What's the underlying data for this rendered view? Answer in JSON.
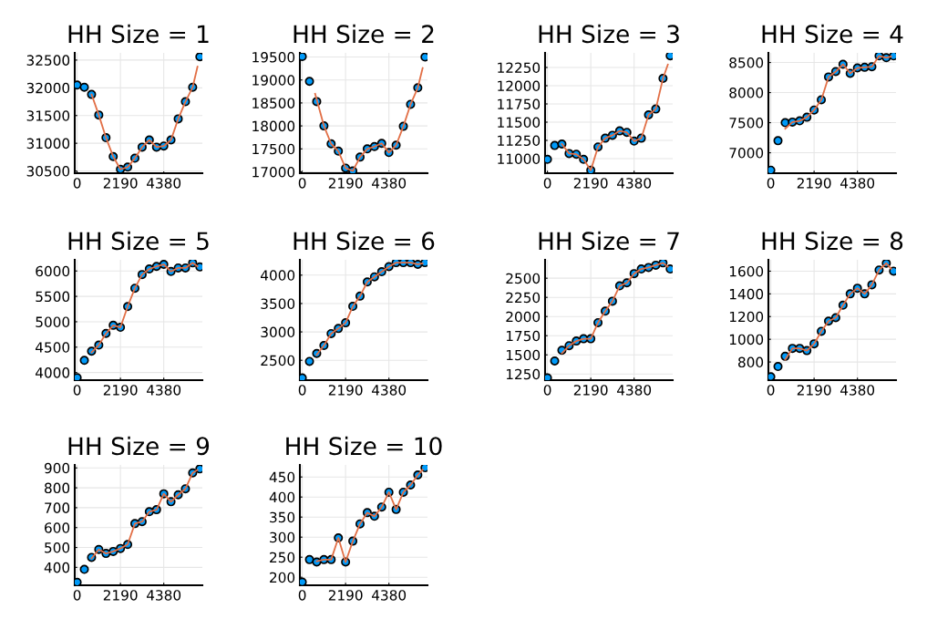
{
  "chart_data": [
    {
      "type": "scatter",
      "title": "HH Size = 1",
      "xlim": [
        -120,
        6330
      ],
      "xticks": [
        0,
        2190,
        4380
      ],
      "ylim": [
        30460,
        32630
      ],
      "yticks": [
        30500,
        31000,
        31500,
        32000,
        32500
      ],
      "grid": true,
      "series": [
        {
          "type": "scatter",
          "color": "#009af9",
          "marker": "circle",
          "x": [
            0,
            365,
            730,
            1095,
            1460,
            1825,
            2190,
            2555,
            2920,
            3285,
            3650,
            4015,
            4380,
            4745,
            5110,
            5475,
            5840,
            6205
          ],
          "values": [
            32050,
            32010,
            31880,
            31510,
            31100,
            30760,
            30530,
            30570,
            30730,
            30930,
            31060,
            30930,
            30950,
            31060,
            31440,
            31750,
            32010,
            32560
          ]
        },
        {
          "type": "line",
          "color": "#e26f46",
          "marker": "none",
          "x": [
            730,
            1095,
            1460,
            1825,
            2190,
            2555,
            2920,
            3285,
            3650,
            4015,
            4380,
            4745,
            5110,
            5475,
            5840,
            6085
          ],
          "values": [
            31880,
            31510,
            31100,
            30760,
            30530,
            30570,
            30730,
            30930,
            31060,
            30930,
            30950,
            31060,
            31440,
            31750,
            32010,
            32380
          ]
        }
      ]
    },
    {
      "type": "scatter",
      "title": "HH Size = 2",
      "xlim": [
        -120,
        6330
      ],
      "xticks": [
        0,
        2190,
        4380
      ],
      "ylim": [
        16970,
        19590
      ],
      "yticks": [
        17000,
        17500,
        18000,
        18500,
        19000,
        19500
      ],
      "grid": true,
      "series": [
        {
          "type": "scatter",
          "color": "#009af9",
          "marker": "circle",
          "x": [
            0,
            365,
            730,
            1095,
            1460,
            1825,
            2190,
            2555,
            2920,
            3285,
            3650,
            4015,
            4380,
            4745,
            5110,
            5475,
            5840,
            6205
          ],
          "values": [
            19510,
            18970,
            18530,
            18000,
            17610,
            17450,
            17080,
            17020,
            17320,
            17500,
            17550,
            17620,
            17420,
            17580,
            17990,
            18470,
            18830,
            19500
          ]
        },
        {
          "type": "line",
          "color": "#e26f46",
          "marker": "none",
          "x": [
            650,
            1095,
            1460,
            1825,
            2190,
            2555,
            2920,
            3285,
            3650,
            4015,
            4380,
            4745,
            5110,
            5475,
            5840,
            6085
          ],
          "values": [
            18700,
            18000,
            17610,
            17450,
            17080,
            17020,
            17320,
            17500,
            17550,
            17620,
            17420,
            17580,
            17990,
            18470,
            18830,
            19260
          ]
        }
      ]
    },
    {
      "type": "scatter",
      "title": "HH Size = 3",
      "xlim": [
        -120,
        6330
      ],
      "xticks": [
        0,
        2190,
        4380
      ],
      "ylim": [
        10800,
        12450
      ],
      "yticks": [
        11000,
        11250,
        11500,
        11750,
        12000,
        12250
      ],
      "grid": true,
      "series": [
        {
          "type": "scatter",
          "color": "#009af9",
          "marker": "circle",
          "x": [
            0,
            365,
            730,
            1095,
            1460,
            1825,
            2190,
            2555,
            2920,
            3285,
            3650,
            4015,
            4380,
            4745,
            5110,
            5475,
            5840,
            6205
          ],
          "values": [
            10990,
            11180,
            11200,
            11070,
            11060,
            10990,
            10840,
            11160,
            11280,
            11320,
            11380,
            11360,
            11240,
            11280,
            11600,
            11680,
            12100,
            12410
          ]
        },
        {
          "type": "line",
          "color": "#e26f46",
          "marker": "none",
          "x": [
            730,
            1095,
            1460,
            1825,
            2190,
            2555,
            2920,
            3285,
            3650,
            4015,
            4380,
            4745,
            5110,
            5475,
            5840,
            6085
          ],
          "values": [
            11200,
            11070,
            11060,
            10990,
            10840,
            11160,
            11280,
            11320,
            11380,
            11360,
            11240,
            11280,
            11600,
            11680,
            12100,
            12290
          ]
        }
      ]
    },
    {
      "type": "scatter",
      "title": "HH Size = 4",
      "xlim": [
        -120,
        6330
      ],
      "xticks": [
        0,
        2190,
        4380
      ],
      "ylim": [
        6660,
        8660
      ],
      "yticks": [
        7000,
        7500,
        8000,
        8500
      ],
      "grid": true,
      "series": [
        {
          "type": "scatter",
          "color": "#009af9",
          "marker": "circle",
          "x": [
            0,
            365,
            730,
            1095,
            1460,
            1825,
            2190,
            2555,
            2920,
            3285,
            3650,
            4015,
            4380,
            4745,
            5110,
            5475,
            5840,
            6205
          ],
          "values": [
            6710,
            7200,
            7500,
            7510,
            7530,
            7590,
            7710,
            7880,
            8260,
            8350,
            8470,
            8320,
            8410,
            8420,
            8430,
            8610,
            8580,
            8610
          ]
        },
        {
          "type": "line",
          "color": "#e26f46",
          "marker": "none",
          "x": [
            730,
            1095,
            1460,
            1825,
            2190,
            2555,
            2920,
            3285,
            3650,
            4015,
            4380,
            4745,
            5110,
            5475,
            5840,
            6085
          ],
          "values": [
            7400,
            7510,
            7530,
            7590,
            7710,
            7880,
            8260,
            8350,
            8470,
            8320,
            8410,
            8420,
            8430,
            8610,
            8580,
            8600
          ]
        }
      ]
    },
    {
      "type": "scatter",
      "title": "HH Size = 5",
      "xlim": [
        -120,
        6330
      ],
      "xticks": [
        0,
        2190,
        4380
      ],
      "ylim": [
        3850,
        6220
      ],
      "yticks": [
        4000,
        4500,
        5000,
        5500,
        6000
      ],
      "grid": true,
      "series": [
        {
          "type": "scatter",
          "color": "#009af9",
          "marker": "circle",
          "x": [
            0,
            365,
            730,
            1095,
            1460,
            1825,
            2190,
            2555,
            2920,
            3285,
            3650,
            4015,
            4380,
            4745,
            5110,
            5475,
            5840,
            6205
          ],
          "values": [
            3900,
            4240,
            4420,
            4540,
            4770,
            4930,
            4890,
            5300,
            5660,
            5930,
            6040,
            6090,
            6130,
            5990,
            6060,
            6060,
            6160,
            6080
          ]
        },
        {
          "type": "line",
          "color": "#e26f46",
          "marker": "none",
          "x": [
            730,
            1095,
            1460,
            1825,
            2190,
            2555,
            2920,
            3285,
            3650,
            4015,
            4380,
            4745,
            5110,
            5475,
            5840,
            6085
          ],
          "values": [
            4400,
            4540,
            4770,
            4930,
            4890,
            5300,
            5660,
            5930,
            6040,
            6090,
            6130,
            5990,
            6060,
            6060,
            6160,
            6090
          ]
        }
      ]
    },
    {
      "type": "scatter",
      "title": "HH Size = 6",
      "xlim": [
        -120,
        6330
      ],
      "xticks": [
        0,
        2190,
        4380
      ],
      "ylim": [
        2150,
        4270
      ],
      "yticks": [
        2500,
        3000,
        3500,
        4000
      ],
      "grid": true,
      "series": [
        {
          "type": "scatter",
          "color": "#009af9",
          "marker": "circle",
          "x": [
            0,
            365,
            730,
            1095,
            1460,
            1825,
            2190,
            2555,
            2920,
            3285,
            3650,
            4015,
            4380,
            4745,
            5110,
            5475,
            5840,
            6205
          ],
          "values": [
            2190,
            2480,
            2620,
            2760,
            2970,
            3060,
            3160,
            3450,
            3630,
            3880,
            3970,
            4060,
            4150,
            4220,
            4220,
            4220,
            4190,
            4220
          ]
        },
        {
          "type": "line",
          "color": "#e26f46",
          "marker": "none",
          "x": [
            730,
            1095,
            1460,
            1825,
            2190,
            2555,
            2920,
            3285,
            3650,
            4015,
            4380,
            4745,
            5110,
            5475,
            5840,
            6085
          ],
          "values": [
            2600,
            2760,
            2970,
            3060,
            3160,
            3450,
            3630,
            3880,
            3970,
            4060,
            4150,
            4220,
            4220,
            4220,
            4190,
            4210
          ]
        }
      ]
    },
    {
      "type": "scatter",
      "title": "HH Size = 7",
      "xlim": [
        -120,
        6330
      ],
      "xticks": [
        0,
        2190,
        4380
      ],
      "ylim": [
        1170,
        2740
      ],
      "yticks": [
        1250,
        1500,
        1750,
        2000,
        2250,
        2500
      ],
      "grid": true,
      "series": [
        {
          "type": "scatter",
          "color": "#009af9",
          "marker": "circle",
          "x": [
            0,
            365,
            730,
            1095,
            1460,
            1825,
            2190,
            2555,
            2920,
            3285,
            3650,
            4015,
            4380,
            4745,
            5110,
            5475,
            5840,
            6205
          ],
          "values": [
            1200,
            1420,
            1560,
            1620,
            1680,
            1710,
            1710,
            1920,
            2070,
            2200,
            2400,
            2440,
            2560,
            2620,
            2640,
            2670,
            2700,
            2620
          ]
        },
        {
          "type": "line",
          "color": "#e26f46",
          "marker": "none",
          "x": [
            730,
            1095,
            1460,
            1825,
            2190,
            2555,
            2920,
            3285,
            3650,
            4015,
            4380,
            4745,
            5110,
            5475,
            5840,
            6085
          ],
          "values": [
            1520,
            1620,
            1680,
            1710,
            1710,
            1920,
            2070,
            2200,
            2400,
            2440,
            2560,
            2620,
            2640,
            2670,
            2700,
            2650
          ]
        }
      ]
    },
    {
      "type": "scatter",
      "title": "HH Size = 8",
      "xlim": [
        -120,
        6330
      ],
      "xticks": [
        0,
        2190,
        4380
      ],
      "ylim": [
        640,
        1700
      ],
      "yticks": [
        800,
        1000,
        1200,
        1400,
        1600
      ],
      "grid": true,
      "series": [
        {
          "type": "scatter",
          "color": "#009af9",
          "marker": "circle",
          "x": [
            0,
            365,
            730,
            1095,
            1460,
            1825,
            2190,
            2555,
            2920,
            3285,
            3650,
            4015,
            4380,
            4745,
            5110,
            5475,
            5840,
            6205
          ],
          "values": [
            670,
            760,
            850,
            920,
            920,
            900,
            960,
            1070,
            1160,
            1190,
            1300,
            1400,
            1450,
            1400,
            1480,
            1610,
            1670,
            1600
          ]
        },
        {
          "type": "line",
          "color": "#e26f46",
          "marker": "none",
          "x": [
            730,
            1095,
            1460,
            1825,
            2190,
            2555,
            2920,
            3285,
            3650,
            4015,
            4380,
            4745,
            5110,
            5475,
            5840,
            6085
          ],
          "values": [
            820,
            920,
            920,
            900,
            960,
            1070,
            1160,
            1190,
            1300,
            1400,
            1450,
            1400,
            1480,
            1610,
            1670,
            1620
          ]
        }
      ]
    },
    {
      "type": "scatter",
      "title": "HH Size = 9",
      "xlim": [
        -120,
        6330
      ],
      "xticks": [
        0,
        2190,
        4380
      ],
      "ylim": [
        310,
        915
      ],
      "yticks": [
        400,
        500,
        600,
        700,
        800,
        900
      ],
      "grid": true,
      "series": [
        {
          "type": "scatter",
          "color": "#009af9",
          "marker": "circle",
          "x": [
            0,
            365,
            730,
            1095,
            1460,
            1825,
            2190,
            2555,
            2920,
            3285,
            3650,
            4015,
            4380,
            4745,
            5110,
            5475,
            5840,
            6205
          ],
          "values": [
            325,
            390,
            450,
            490,
            470,
            480,
            495,
            515,
            620,
            630,
            680,
            690,
            770,
            730,
            765,
            795,
            875,
            895
          ]
        },
        {
          "type": "line",
          "color": "#e26f46",
          "marker": "none",
          "x": [
            730,
            1095,
            1460,
            1825,
            2190,
            2555,
            2920,
            3285,
            3650,
            4015,
            4380,
            4745,
            5110,
            5475,
            5840,
            6085
          ],
          "values": [
            445,
            490,
            470,
            480,
            495,
            515,
            620,
            630,
            680,
            690,
            770,
            730,
            765,
            795,
            875,
            890
          ]
        }
      ]
    },
    {
      "type": "scatter",
      "title": "HH Size = 10",
      "xlim": [
        -120,
        6330
      ],
      "xticks": [
        0,
        2190,
        4380
      ],
      "ylim": [
        180,
        480
      ],
      "yticks": [
        200,
        250,
        300,
        350,
        400,
        450
      ],
      "grid": true,
      "series": [
        {
          "type": "scatter",
          "color": "#009af9",
          "marker": "circle",
          "x": [
            0,
            365,
            730,
            1095,
            1460,
            1825,
            2190,
            2555,
            2920,
            3285,
            3650,
            4015,
            4380,
            4745,
            5110,
            5475,
            5840,
            6205
          ],
          "values": [
            188,
            244,
            238,
            244,
            244,
            298,
            238,
            290,
            333,
            361,
            352,
            375,
            412,
            369,
            412,
            430,
            455,
            473
          ]
        },
        {
          "type": "line",
          "color": "#e26f46",
          "marker": "none",
          "x": [
            730,
            1095,
            1460,
            1825,
            2190,
            2555,
            2920,
            3285,
            3650,
            4015,
            4380,
            4745,
            5110,
            5475,
            5840,
            6085
          ],
          "values": [
            240,
            244,
            244,
            298,
            238,
            290,
            333,
            361,
            352,
            375,
            412,
            369,
            412,
            430,
            455,
            468
          ]
        }
      ]
    }
  ]
}
